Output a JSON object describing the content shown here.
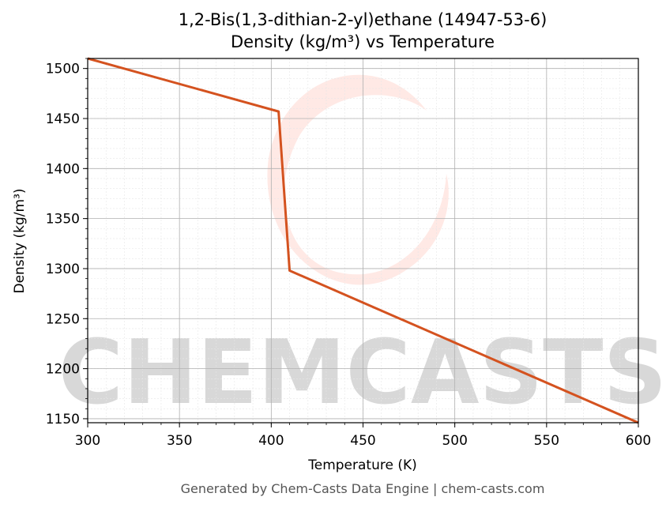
{
  "chart_data": {
    "type": "line",
    "title": "1,2-Bis(1,3-dithian-2-yl)ethane (14947-53-6)",
    "subtitle": "Density (kg/m³) vs Temperature",
    "x_label": "Temperature (K)",
    "y_label": "Density (kg/m³)",
    "x": [
      300,
      404,
      410,
      600
    ],
    "series": [
      {
        "name": "Density",
        "color": "#d4521f",
        "values": [
          1510,
          1457,
          1298,
          1146
        ]
      }
    ],
    "xlim": [
      300,
      600
    ],
    "xticks": [
      300,
      350,
      400,
      450,
      500,
      550,
      600
    ],
    "ylim": [
      1146,
      1510
    ],
    "yticks": [
      1150,
      1200,
      1250,
      1300,
      1350,
      1400,
      1450,
      1500
    ],
    "grid": true,
    "minor_grid": true,
    "watermark": "CHEMCASTS",
    "footer": "Generated by Chem-Casts Data Engine | chem-casts.com"
  }
}
